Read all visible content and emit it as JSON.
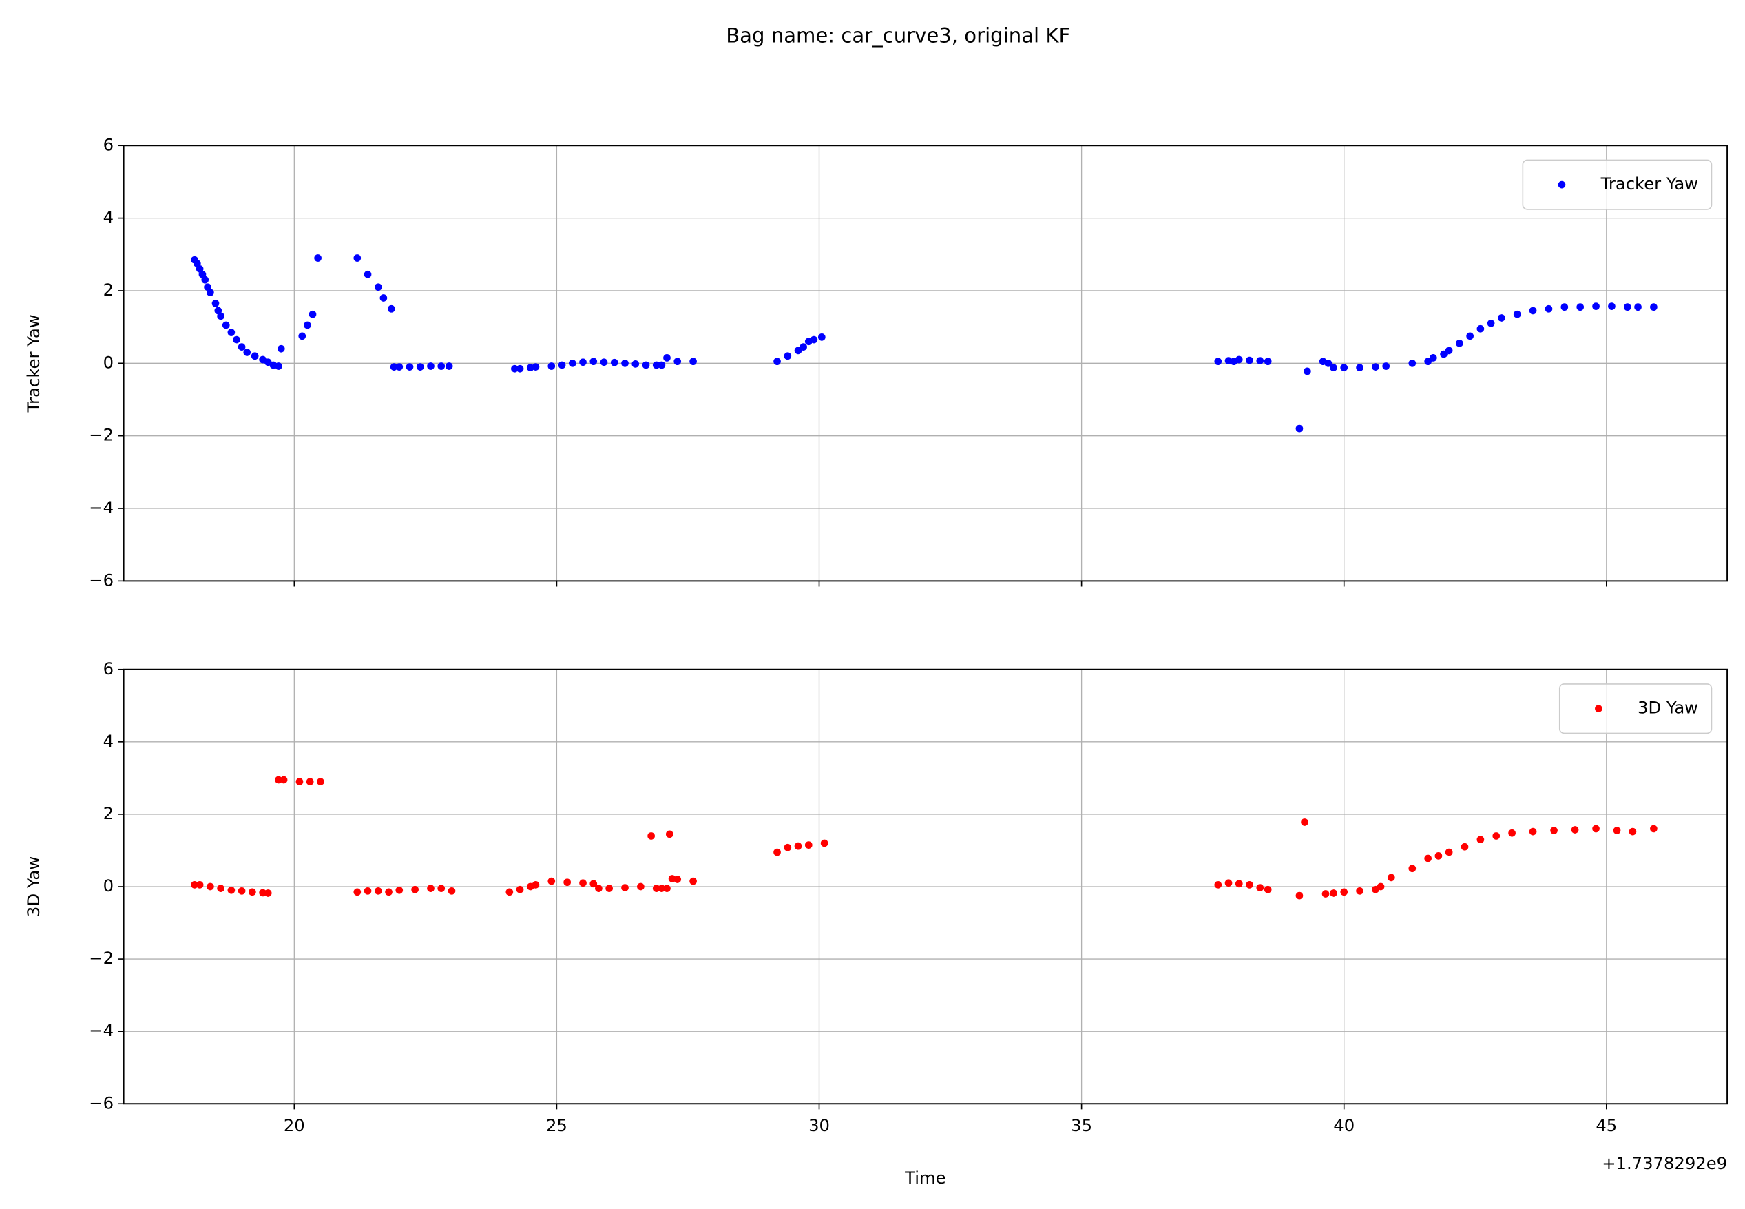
{
  "title": "Bag name: car_curve3, original KF",
  "chart_data": [
    {
      "type": "scatter",
      "ylabel": "Tracker Yaw",
      "xlim": [
        16.75,
        47.3
      ],
      "xticks": [
        20,
        25,
        30,
        35,
        40,
        45
      ],
      "show_xticklabels": false,
      "ylim": [
        -6,
        6
      ],
      "yticks": [
        {
          "value": -6,
          "label": "−6"
        },
        {
          "value": -4,
          "label": "−4"
        },
        {
          "value": -2,
          "label": "−2"
        },
        0,
        2,
        4,
        6
      ],
      "grid": true,
      "legend": "upper right",
      "series": [
        {
          "name": "Tracker Yaw",
          "color": "#0000ff",
          "x": [
            18.1,
            18.15,
            18.2,
            18.25,
            18.3,
            18.35,
            18.4,
            18.5,
            18.55,
            18.6,
            18.7,
            18.8,
            18.9,
            19.0,
            19.1,
            19.25,
            19.4,
            19.5,
            19.6,
            19.7,
            19.75,
            20.15,
            20.25,
            20.35,
            20.45,
            21.2,
            21.4,
            21.6,
            21.7,
            21.85,
            21.9,
            22.0,
            22.2,
            22.4,
            22.6,
            22.8,
            22.95,
            24.2,
            24.3,
            24.5,
            24.6,
            24.9,
            25.1,
            25.3,
            25.5,
            25.7,
            25.9,
            26.1,
            26.3,
            26.5,
            26.7,
            26.9,
            27.0,
            27.1,
            27.3,
            27.6,
            29.2,
            29.4,
            29.6,
            29.7,
            29.8,
            29.9,
            30.05,
            37.6,
            37.8,
            37.9,
            38.0,
            38.2,
            38.4,
            38.55,
            39.15,
            39.3,
            39.6,
            39.7,
            39.8,
            40.0,
            40.3,
            40.6,
            40.8,
            41.3,
            41.6,
            41.7,
            41.9,
            42.0,
            42.2,
            42.4,
            42.6,
            42.8,
            43.0,
            43.3,
            43.6,
            43.9,
            44.2,
            44.5,
            44.8,
            45.1,
            45.4,
            45.6,
            45.9
          ],
          "values": [
            2.85,
            2.75,
            2.6,
            2.45,
            2.3,
            2.1,
            1.95,
            1.65,
            1.45,
            1.3,
            1.05,
            0.85,
            0.65,
            0.45,
            0.3,
            0.2,
            0.1,
            0.03,
            -0.05,
            -0.08,
            0.4,
            0.75,
            1.05,
            1.35,
            2.9,
            2.9,
            2.45,
            2.1,
            1.8,
            1.5,
            -0.1,
            -0.1,
            -0.1,
            -0.1,
            -0.08,
            -0.08,
            -0.08,
            -0.15,
            -0.15,
            -0.12,
            -0.1,
            -0.08,
            -0.05,
            0.0,
            0.03,
            0.05,
            0.03,
            0.02,
            0.0,
            -0.02,
            -0.05,
            -0.05,
            -0.05,
            0.15,
            0.05,
            0.05,
            0.05,
            0.2,
            0.35,
            0.45,
            0.6,
            0.65,
            0.72,
            0.05,
            0.07,
            0.05,
            0.1,
            0.08,
            0.07,
            0.05,
            -1.8,
            -0.22,
            0.05,
            0.0,
            -0.12,
            -0.12,
            -0.12,
            -0.1,
            -0.08,
            0.0,
            0.05,
            0.15,
            0.25,
            0.35,
            0.55,
            0.75,
            0.95,
            1.1,
            1.25,
            1.35,
            1.45,
            1.5,
            1.55,
            1.55,
            1.57,
            1.57,
            1.55,
            1.55,
            1.55
          ]
        }
      ]
    },
    {
      "type": "scatter",
      "ylabel": "3D Yaw",
      "xlabel": "Time",
      "x_offset_label": "+1.7378292e9",
      "xlim": [
        16.75,
        47.3
      ],
      "xticks": [
        20,
        25,
        30,
        35,
        40,
        45
      ],
      "show_xticklabels": true,
      "ylim": [
        -6,
        6
      ],
      "yticks": [
        {
          "value": -6,
          "label": "−6"
        },
        {
          "value": -4,
          "label": "−4"
        },
        {
          "value": -2,
          "label": "−2"
        },
        0,
        2,
        4,
        6
      ],
      "grid": true,
      "legend": "upper right",
      "series": [
        {
          "name": "3D Yaw",
          "color": "#ff0000",
          "x": [
            18.1,
            18.2,
            18.4,
            18.6,
            18.8,
            19.0,
            19.2,
            19.4,
            19.5,
            19.7,
            19.8,
            20.1,
            20.3,
            20.5,
            21.2,
            21.4,
            21.6,
            21.8,
            22.0,
            22.3,
            22.6,
            22.8,
            23.0,
            24.1,
            24.3,
            24.5,
            24.6,
            24.9,
            25.2,
            25.5,
            25.7,
            25.8,
            26.0,
            26.3,
            26.6,
            26.8,
            26.9,
            27.0,
            27.1,
            27.15,
            27.2,
            27.3,
            27.6,
            29.2,
            29.4,
            29.6,
            29.8,
            30.1,
            37.6,
            37.8,
            38.0,
            38.2,
            38.4,
            38.55,
            39.15,
            39.25,
            39.65,
            39.8,
            40.0,
            40.3,
            40.6,
            40.7,
            40.9,
            41.3,
            41.6,
            41.8,
            42.0,
            42.3,
            42.6,
            42.9,
            43.2,
            43.6,
            44.0,
            44.4,
            44.8,
            45.2,
            45.5,
            45.9
          ],
          "values": [
            0.05,
            0.05,
            0.0,
            -0.05,
            -0.1,
            -0.12,
            -0.15,
            -0.17,
            -0.18,
            2.95,
            2.95,
            2.9,
            2.9,
            2.9,
            -0.15,
            -0.12,
            -0.12,
            -0.15,
            -0.1,
            -0.08,
            -0.05,
            -0.05,
            -0.12,
            -0.15,
            -0.08,
            0.0,
            0.05,
            0.15,
            0.12,
            0.1,
            0.08,
            -0.05,
            -0.05,
            -0.03,
            0.0,
            1.4,
            -0.05,
            -0.05,
            -0.05,
            1.45,
            0.22,
            0.2,
            0.15,
            0.95,
            1.08,
            1.12,
            1.15,
            1.2,
            0.05,
            0.1,
            0.08,
            0.05,
            -0.03,
            -0.08,
            -0.25,
            1.78,
            -0.2,
            -0.18,
            -0.15,
            -0.12,
            -0.08,
            0.0,
            0.25,
            0.5,
            0.78,
            0.85,
            0.95,
            1.1,
            1.3,
            1.4,
            1.48,
            1.52,
            1.55,
            1.57,
            1.6,
            1.55,
            1.52,
            1.6
          ]
        }
      ]
    }
  ]
}
